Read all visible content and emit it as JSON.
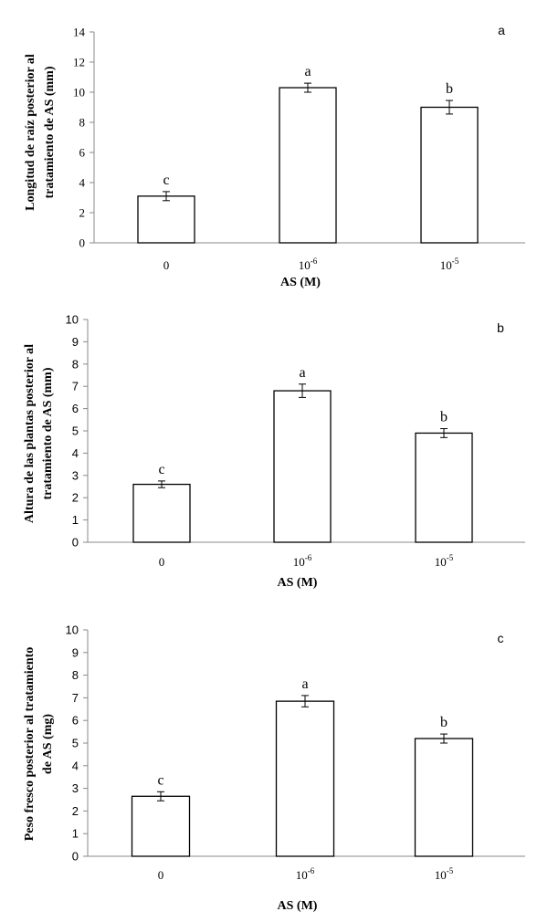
{
  "chart_data": [
    {
      "type": "bar",
      "panel": "a",
      "categories": [
        "0",
        "10",
        "10"
      ],
      "category_exponents": [
        "",
        "-6",
        "-5"
      ],
      "values": [
        3.1,
        10.3,
        9.0
      ],
      "errors": [
        0.3,
        0.3,
        0.45
      ],
      "significance": [
        "c",
        "a",
        "b"
      ],
      "ylim": [
        0,
        14
      ],
      "yticks": [
        0,
        2,
        4,
        6,
        8,
        10,
        12,
        14
      ],
      "xlabel": "AS (M)",
      "ylabel_lines": [
        "Longitud de raíz posterior al",
        "tratamiento de AS (mm)"
      ]
    },
    {
      "type": "bar",
      "panel": "b",
      "categories": [
        "0",
        "10",
        "10"
      ],
      "category_exponents": [
        "",
        "-6",
        "-5"
      ],
      "values": [
        2.6,
        6.8,
        4.9
      ],
      "errors": [
        0.15,
        0.3,
        0.2
      ],
      "significance": [
        "c",
        "a",
        "b"
      ],
      "ylim": [
        0,
        10
      ],
      "yticks": [
        0,
        1,
        2,
        3,
        4,
        5,
        6,
        7,
        8,
        9,
        10
      ],
      "xlabel": "AS (M)",
      "ylabel_lines": [
        "Altura de las plantas  posterior al",
        "tratamiento de AS (mm)"
      ]
    },
    {
      "type": "bar",
      "panel": "c",
      "categories": [
        "0",
        "10",
        "10"
      ],
      "category_exponents": [
        "",
        "-6",
        "-5"
      ],
      "values": [
        2.65,
        6.85,
        5.2
      ],
      "errors": [
        0.2,
        0.25,
        0.2
      ],
      "significance": [
        "c",
        "a",
        "b"
      ],
      "ylim": [
        0,
        10
      ],
      "yticks": [
        0,
        1,
        2,
        3,
        4,
        5,
        6,
        7,
        8,
        9,
        10
      ],
      "xlabel": "AS (M)",
      "ylabel_lines": [
        "Peso fresco posterior al tratamiento",
        "de AS (mg)"
      ]
    }
  ]
}
